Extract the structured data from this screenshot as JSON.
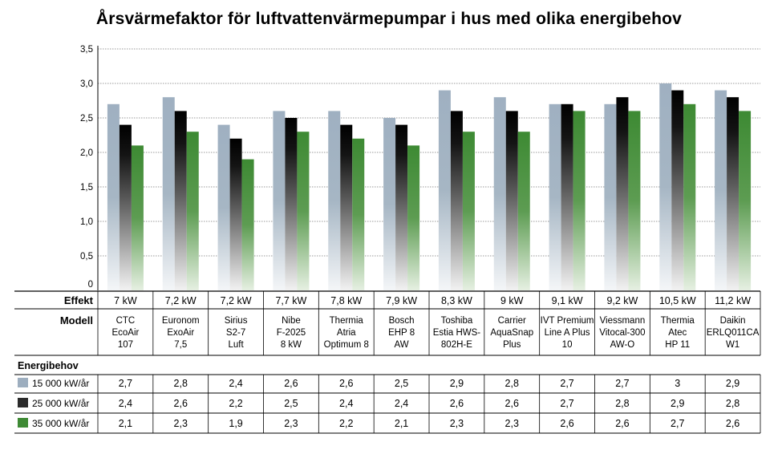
{
  "chart_data": {
    "type": "bar",
    "title": "Årsvärmefaktor för luftvattenvärmepumpar i hus med olika energibehov",
    "ylim": [
      0,
      3.5
    ],
    "yticks": [
      "0",
      "0,5",
      "1,0",
      "1,5",
      "2,0",
      "2,5",
      "3,0",
      "3,5"
    ],
    "grid": true,
    "row_labels": {
      "effekt": "Effekt",
      "modell": "Modell",
      "energibehov": "Energibehov"
    },
    "categories": [
      {
        "effekt": "7 kW",
        "modell": [
          "CTC",
          "EcoAir",
          "107"
        ]
      },
      {
        "effekt": "7,2 kW",
        "modell": [
          "Euronom",
          "ExoAir",
          "7,5"
        ]
      },
      {
        "effekt": "7,2 kW",
        "modell": [
          "Sirius",
          "S2-7",
          "Luft"
        ]
      },
      {
        "effekt": "7,7 kW",
        "modell": [
          "Nibe",
          "F-2025",
          "8 kW"
        ]
      },
      {
        "effekt": "7,8 kW",
        "modell": [
          "Thermia",
          "Atria",
          "Optimum 8"
        ]
      },
      {
        "effekt": "7,9 kW",
        "modell": [
          "Bosch",
          "EHP 8",
          "AW"
        ]
      },
      {
        "effekt": "8,3 kW",
        "modell": [
          "Toshiba",
          "Estia HWS-",
          "802H-E"
        ]
      },
      {
        "effekt": "9 kW",
        "modell": [
          "Carrier",
          "AquaSnap",
          "Plus"
        ]
      },
      {
        "effekt": "9,1 kW",
        "modell": [
          "IVT Premium",
          "Line A Plus",
          "10"
        ]
      },
      {
        "effekt": "9,2 kW",
        "modell": [
          "Viessmann",
          "Vitocal-300",
          "AW-O"
        ]
      },
      {
        "effekt": "10,5 kW",
        "modell": [
          "Thermia",
          "Atec",
          "HP 11"
        ]
      },
      {
        "effekt": "11,2 kW",
        "modell": [
          "Daikin",
          "ERLQ011CA",
          "W1"
        ]
      }
    ],
    "series": [
      {
        "name": "15 000 kW/år",
        "color": "#9daebf",
        "values": [
          2.7,
          2.8,
          2.4,
          2.6,
          2.6,
          2.5,
          2.9,
          2.8,
          2.7,
          2.7,
          3.0,
          2.9
        ],
        "labels": [
          "2,7",
          "2,8",
          "2,4",
          "2,6",
          "2,6",
          "2,5",
          "2,9",
          "2,8",
          "2,7",
          "2,7",
          "3",
          "2,9"
        ]
      },
      {
        "name": "25 000 kW/år",
        "color": "#2b2b2b",
        "values": [
          2.4,
          2.6,
          2.2,
          2.5,
          2.4,
          2.4,
          2.6,
          2.6,
          2.7,
          2.8,
          2.9,
          2.8
        ],
        "labels": [
          "2,4",
          "2,6",
          "2,2",
          "2,5",
          "2,4",
          "2,4",
          "2,6",
          "2,6",
          "2,7",
          "2,8",
          "2,9",
          "2,8"
        ]
      },
      {
        "name": "35 000 kW/år",
        "color": "#3f8a35",
        "values": [
          2.1,
          2.3,
          1.9,
          2.3,
          2.2,
          2.1,
          2.3,
          2.3,
          2.6,
          2.6,
          2.7,
          2.6
        ],
        "labels": [
          "2,1",
          "2,3",
          "1,9",
          "2,3",
          "2,2",
          "2,1",
          "2,3",
          "2,3",
          "2,6",
          "2,6",
          "2,7",
          "2,6"
        ]
      }
    ]
  }
}
